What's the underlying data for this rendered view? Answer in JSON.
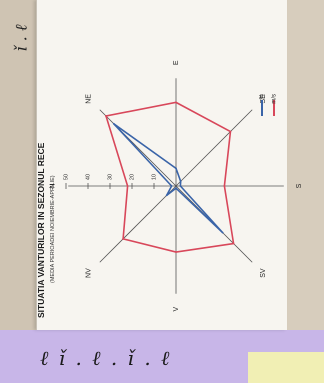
{
  "chart_data": {
    "type": "radar",
    "title": "SITUATIA VANTURILOR IN SEZONUL RECE",
    "subtitle": "(MEDIA PERIOADEI NOIEMBRIE-APRILIE)",
    "directions": [
      "N",
      "NE",
      "E",
      "SE",
      "S",
      "SV",
      "V",
      "NV"
    ],
    "radial_ticks": [
      0,
      10,
      20,
      30,
      40,
      50
    ],
    "radial_range": [
      0,
      50
    ],
    "legend_placement": "top-right",
    "series": [
      {
        "name": "%",
        "color": "#3a64a8",
        "values": [
          2,
          40,
          8,
          3,
          2,
          30,
          1,
          6
        ]
      },
      {
        "name": "m/s",
        "color": "#d8475a",
        "values": [
          22,
          45,
          38,
          35,
          22,
          37,
          30,
          34
        ]
      }
    ]
  },
  "annotations": {
    "bottom_handwriting": "ℓ ǐ . ℓ . ǐ . ℓ",
    "left_handwriting": "ǐ . ℓ"
  },
  "colors": {
    "paper": "#f7f5f0",
    "background": "#d9cfc0",
    "purple_band": "#c8b6e8",
    "yellow_band": "#f1efb4",
    "axis": "#555555"
  }
}
